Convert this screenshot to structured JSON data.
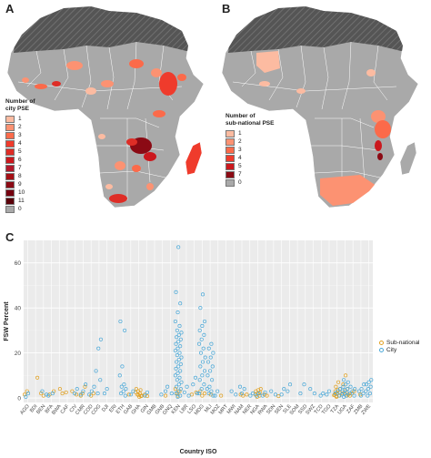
{
  "panels": {
    "a_label": "A",
    "b_label": "B",
    "c_label": "C"
  },
  "map_a": {
    "legend_title_lines": [
      "Number of",
      "city PSE"
    ],
    "legend": [
      {
        "label": "1",
        "color": "#fcbba1"
      },
      {
        "label": "2",
        "color": "#fc9272"
      },
      {
        "label": "3",
        "color": "#fb6a4a"
      },
      {
        "label": "4",
        "color": "#ef3b2c"
      },
      {
        "label": "5",
        "color": "#de2d26"
      },
      {
        "label": "6",
        "color": "#cb181d"
      },
      {
        "label": "7",
        "color": "#b2182b"
      },
      {
        "label": "8",
        "color": "#a50f15"
      },
      {
        "label": "9",
        "color": "#8b0a14"
      },
      {
        "label": "10",
        "color": "#75000f"
      },
      {
        "label": "11",
        "color": "#5a0009"
      },
      {
        "label": "0",
        "color": "#a9a9a9"
      }
    ]
  },
  "map_b": {
    "legend_title_lines": [
      "Number of",
      "sub-national PSE"
    ],
    "legend": [
      {
        "label": "1",
        "color": "#fcbba1"
      },
      {
        "label": "2",
        "color": "#fc9272"
      },
      {
        "label": "3",
        "color": "#fb6a4a"
      },
      {
        "label": "4",
        "color": "#ef3b2c"
      },
      {
        "label": "5",
        "color": "#cb181d"
      },
      {
        "label": "7",
        "color": "#8b0a14"
      },
      {
        "label": "0",
        "color": "#a9a9a9"
      }
    ]
  },
  "chart_data": {
    "type": "scatter",
    "xlabel": "Country ISO",
    "ylabel": "FSW Percent",
    "ylim": [
      -2,
      70
    ],
    "yticks": [
      0,
      20,
      40,
      60
    ],
    "grid": true,
    "legend_position": "right",
    "categories": [
      "AGO",
      "BDI",
      "BEN",
      "BFA",
      "BWA",
      "CAF",
      "CIV",
      "CMR",
      "COD",
      "COG",
      "DJI",
      "ERI",
      "ETH",
      "GAB",
      "GHA",
      "GIN",
      "GMB",
      "GNB",
      "GNQ",
      "KEN",
      "LBR",
      "LSO",
      "MDG",
      "MLI",
      "MOZ",
      "MRT",
      "MWI",
      "NAM",
      "NER",
      "NGA",
      "RWA",
      "SDN",
      "SEN",
      "SLE",
      "SOM",
      "SSD",
      "SWZ",
      "TCD",
      "TGO",
      "TZA",
      "UGA",
      "ZAF",
      "ZMB",
      "ZWE"
    ],
    "series": [
      {
        "name": "Sub-national",
        "color": "#e0a020",
        "points": [
          [
            "AGO",
            1.5
          ],
          [
            "AGO",
            3
          ],
          [
            "BDI",
            9
          ],
          [
            "BEN",
            2
          ],
          [
            "BEN",
            1
          ],
          [
            "BFA",
            3
          ],
          [
            "BFA",
            1.5
          ],
          [
            "BWA",
            4
          ],
          [
            "BWA",
            2
          ],
          [
            "CAF",
            2.5
          ],
          [
            "CIV",
            1.5
          ],
          [
            "CIV",
            3
          ],
          [
            "CMR",
            2
          ],
          [
            "CMR",
            5
          ],
          [
            "CMR",
            1
          ],
          [
            "COD",
            1
          ],
          [
            "COD",
            2
          ],
          [
            "GAB",
            1.5
          ],
          [
            "GHA",
            0.5
          ],
          [
            "GHA",
            1
          ],
          [
            "GHA",
            1.5
          ],
          [
            "GHA",
            2
          ],
          [
            "GHA",
            2.5
          ],
          [
            "GHA",
            3
          ],
          [
            "GHA",
            3.5
          ],
          [
            "GHA",
            4
          ],
          [
            "GHA",
            1.2
          ],
          [
            "GHA",
            0.8
          ],
          [
            "GIN",
            1.5
          ],
          [
            "GIN",
            0.8
          ],
          [
            "GNB",
            1
          ],
          [
            "KEN",
            2
          ],
          [
            "KEN",
            3
          ],
          [
            "KEN",
            4
          ],
          [
            "KEN",
            1
          ],
          [
            "LSO",
            2.5
          ],
          [
            "LSO",
            1.5
          ],
          [
            "MDG",
            1
          ],
          [
            "MDG",
            2
          ],
          [
            "MDG",
            3
          ],
          [
            "MLI",
            1.5
          ],
          [
            "MOZ",
            1
          ],
          [
            "NAM",
            1.5
          ],
          [
            "NAM",
            1
          ],
          [
            "NER",
            1.5
          ],
          [
            "NGA",
            0.5
          ],
          [
            "NGA",
            1
          ],
          [
            "NGA",
            1.5
          ],
          [
            "NGA",
            2
          ],
          [
            "NGA",
            2.5
          ],
          [
            "NGA",
            3
          ],
          [
            "NGA",
            3.5
          ],
          [
            "NGA",
            4
          ],
          [
            "RWA",
            1.5
          ],
          [
            "RWA",
            1
          ],
          [
            "SEN",
            0.8
          ],
          [
            "TZA",
            0.5
          ],
          [
            "TZA",
            1
          ],
          [
            "TZA",
            1.5
          ],
          [
            "TZA",
            2
          ],
          [
            "TZA",
            2.5
          ],
          [
            "TZA",
            3
          ],
          [
            "TZA",
            3.5
          ],
          [
            "TZA",
            4
          ],
          [
            "TZA",
            5
          ],
          [
            "TZA",
            7
          ],
          [
            "TZA",
            1.2
          ],
          [
            "TZA",
            0.8
          ],
          [
            "UGA",
            1
          ],
          [
            "UGA",
            2
          ],
          [
            "UGA",
            3
          ],
          [
            "UGA",
            4
          ],
          [
            "UGA",
            6
          ],
          [
            "UGA",
            10
          ],
          [
            "UGA",
            1.5
          ],
          [
            "ZAF",
            2
          ],
          [
            "ZAF",
            3
          ],
          [
            "ZAF",
            1
          ],
          [
            "ZMB",
            1.5
          ]
        ]
      },
      {
        "name": "City",
        "color": "#4aa8d8",
        "points": [
          [
            "AGO",
            0.5
          ],
          [
            "AGO",
            2
          ],
          [
            "BEN",
            1.5
          ],
          [
            "BEN",
            3
          ],
          [
            "BFA",
            2
          ],
          [
            "BFA",
            1
          ],
          [
            "CIV",
            2
          ],
          [
            "CIV",
            4
          ],
          [
            "CMR",
            1.5
          ],
          [
            "CMR",
            3
          ],
          [
            "CMR",
            6
          ],
          [
            "COD",
            1.5
          ],
          [
            "COD",
            3
          ],
          [
            "COD",
            5
          ],
          [
            "COG",
            2
          ],
          [
            "COG",
            8
          ],
          [
            "COG",
            12
          ],
          [
            "COG",
            22
          ],
          [
            "COG",
            26
          ],
          [
            "DJI",
            2
          ],
          [
            "DJI",
            4
          ],
          [
            "ETH",
            1
          ],
          [
            "ETH",
            2
          ],
          [
            "ETH",
            3
          ],
          [
            "ETH",
            4
          ],
          [
            "ETH",
            5
          ],
          [
            "ETH",
            6
          ],
          [
            "ETH",
            10
          ],
          [
            "ETH",
            14
          ],
          [
            "ETH",
            30
          ],
          [
            "ETH",
            34
          ],
          [
            "GAB",
            1.5
          ],
          [
            "GAB",
            3
          ],
          [
            "GIN",
            1
          ],
          [
            "GIN",
            2.5
          ],
          [
            "GNB",
            3
          ],
          [
            "GNB",
            1.5
          ],
          [
            "GNQ",
            2
          ],
          [
            "GNQ",
            5
          ],
          [
            "KEN",
            0.5
          ],
          [
            "KEN",
            1
          ],
          [
            "KEN",
            2
          ],
          [
            "KEN",
            3
          ],
          [
            "KEN",
            4
          ],
          [
            "KEN",
            5
          ],
          [
            "KEN",
            6
          ],
          [
            "KEN",
            7
          ],
          [
            "KEN",
            8
          ],
          [
            "KEN",
            9
          ],
          [
            "KEN",
            10
          ],
          [
            "KEN",
            11
          ],
          [
            "KEN",
            12
          ],
          [
            "KEN",
            13
          ],
          [
            "KEN",
            14
          ],
          [
            "KEN",
            15
          ],
          [
            "KEN",
            16
          ],
          [
            "KEN",
            17
          ],
          [
            "KEN",
            18
          ],
          [
            "KEN",
            19
          ],
          [
            "KEN",
            20
          ],
          [
            "KEN",
            21
          ],
          [
            "KEN",
            22
          ],
          [
            "KEN",
            23
          ],
          [
            "KEN",
            24
          ],
          [
            "KEN",
            25
          ],
          [
            "KEN",
            26
          ],
          [
            "KEN",
            27
          ],
          [
            "KEN",
            28
          ],
          [
            "KEN",
            29
          ],
          [
            "KEN",
            30
          ],
          [
            "KEN",
            32
          ],
          [
            "KEN",
            34
          ],
          [
            "KEN",
            38
          ],
          [
            "KEN",
            42
          ],
          [
            "KEN",
            47
          ],
          [
            "KEN",
            67
          ],
          [
            "LBR",
            1
          ],
          [
            "LBR",
            2.5
          ],
          [
            "LBR",
            5
          ],
          [
            "LSO",
            2
          ],
          [
            "LSO",
            6
          ],
          [
            "LSO",
            9
          ],
          [
            "MDG",
            2
          ],
          [
            "MDG",
            4
          ],
          [
            "MDG",
            6
          ],
          [
            "MDG",
            8
          ],
          [
            "MDG",
            10
          ],
          [
            "MDG",
            12
          ],
          [
            "MDG",
            14
          ],
          [
            "MDG",
            16
          ],
          [
            "MDG",
            18
          ],
          [
            "MDG",
            20
          ],
          [
            "MDG",
            22
          ],
          [
            "MDG",
            24
          ],
          [
            "MDG",
            26
          ],
          [
            "MDG",
            28
          ],
          [
            "MDG",
            30
          ],
          [
            "MDG",
            32
          ],
          [
            "MDG",
            34
          ],
          [
            "MDG",
            40
          ],
          [
            "MDG",
            46
          ],
          [
            "MLI",
            1
          ],
          [
            "MLI",
            2
          ],
          [
            "MLI",
            3
          ],
          [
            "MLI",
            4
          ],
          [
            "MLI",
            5
          ],
          [
            "MLI",
            8
          ],
          [
            "MLI",
            10
          ],
          [
            "MLI",
            12
          ],
          [
            "MLI",
            14
          ],
          [
            "MLI",
            16
          ],
          [
            "MLI",
            18
          ],
          [
            "MLI",
            20
          ],
          [
            "MLI",
            22
          ],
          [
            "MLI",
            24
          ],
          [
            "MOZ",
            1
          ],
          [
            "MOZ",
            3
          ],
          [
            "MWI",
            1.5
          ],
          [
            "MWI",
            3
          ],
          [
            "NAM",
            2
          ],
          [
            "NAM",
            4
          ],
          [
            "NAM",
            5
          ],
          [
            "NER",
            1
          ],
          [
            "NER",
            2
          ],
          [
            "NGA",
            1
          ],
          [
            "NGA",
            2
          ],
          [
            "RWA",
            1
          ],
          [
            "RWA",
            2.5
          ],
          [
            "SDN",
            1.5
          ],
          [
            "SDN",
            3
          ],
          [
            "SEN",
            1.5
          ],
          [
            "SEN",
            4
          ],
          [
            "SLE",
            3
          ],
          [
            "SLE",
            6
          ],
          [
            "SOM",
            2
          ],
          [
            "SSD",
            6
          ],
          [
            "SWZ",
            2
          ],
          [
            "SWZ",
            4
          ],
          [
            "TCD",
            1
          ],
          [
            "TCD",
            2
          ],
          [
            "TGO",
            1.5
          ],
          [
            "TGO",
            3
          ],
          [
            "TZA",
            1
          ],
          [
            "TZA",
            2
          ],
          [
            "TZA",
            3
          ],
          [
            "TZA",
            4
          ],
          [
            "UGA",
            0.5
          ],
          [
            "UGA",
            1
          ],
          [
            "UGA",
            1.5
          ],
          [
            "UGA",
            2
          ],
          [
            "UGA",
            2.5
          ],
          [
            "UGA",
            3
          ],
          [
            "UGA",
            3.5
          ],
          [
            "UGA",
            4
          ],
          [
            "UGA",
            5
          ],
          [
            "UGA",
            6
          ],
          [
            "UGA",
            7
          ],
          [
            "UGA",
            8
          ],
          [
            "ZAF",
            1
          ],
          [
            "ZAF",
            2
          ],
          [
            "ZAF",
            3
          ],
          [
            "ZAF",
            4
          ],
          [
            "ZAF",
            5
          ],
          [
            "ZMB",
            1
          ],
          [
            "ZMB",
            2
          ],
          [
            "ZMB",
            3
          ],
          [
            "ZMB",
            4
          ],
          [
            "ZMB",
            6
          ],
          [
            "ZWE",
            1
          ],
          [
            "ZWE",
            2
          ],
          [
            "ZWE",
            3
          ],
          [
            "ZWE",
            4
          ],
          [
            "ZWE",
            5
          ],
          [
            "ZWE",
            6
          ],
          [
            "ZWE",
            7
          ],
          [
            "ZWE",
            8
          ]
        ]
      }
    ]
  }
}
